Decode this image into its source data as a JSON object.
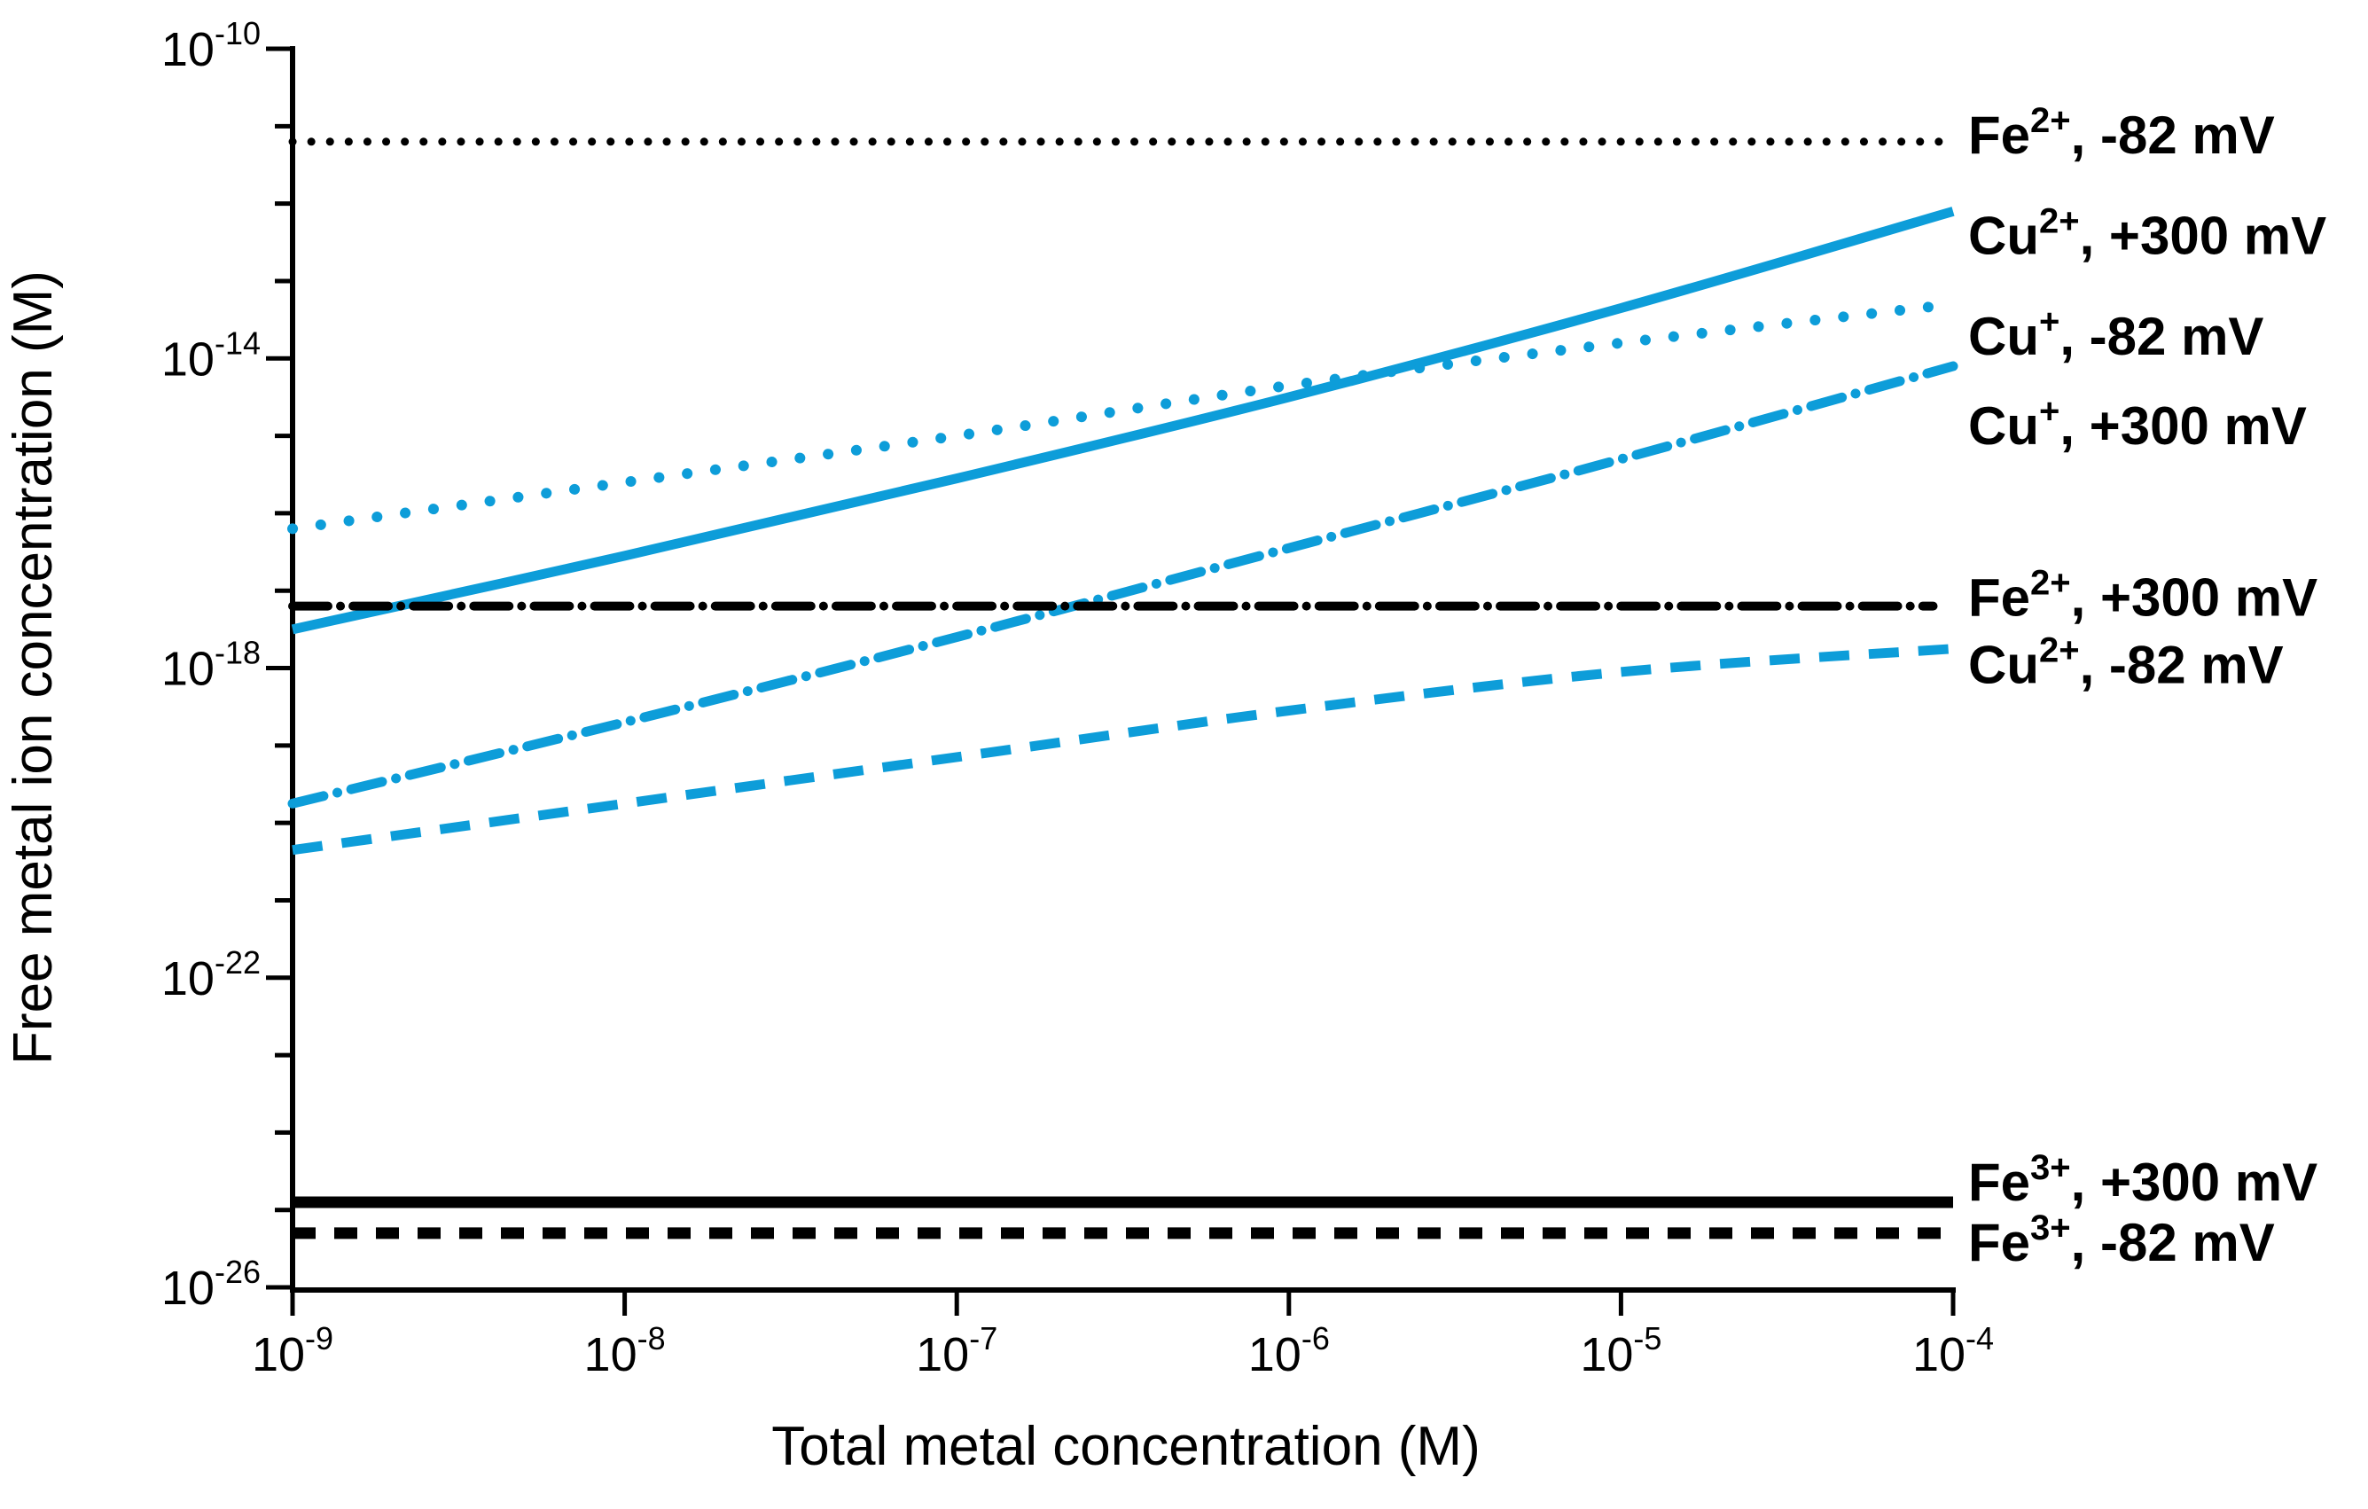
{
  "figure": {
    "background": "#ffffff",
    "accent_blue": "#0d9dd9",
    "line_black": "#000000"
  },
  "chart_data": {
    "type": "line",
    "title": "",
    "xlabel": "Total metal concentration (M)",
    "ylabel": "Free metal ion concentration (M)",
    "x_scale": "log",
    "y_scale": "log",
    "x_log_range": [
      -9,
      -4
    ],
    "y_log_range": [
      -10,
      -26
    ],
    "x_tick_exponents": [
      -9,
      -8,
      -7,
      -6,
      -5,
      -4
    ],
    "y_major_tick_exponents": [
      -10,
      -14,
      -18,
      -22,
      -26
    ],
    "y_minor_tick_step": 1,
    "tick_mantissa": "10",
    "grid": false,
    "legend_position": "right-of-lines",
    "series": [
      {
        "id": "fe2-minus82",
        "label": {
          "base": "Fe",
          "sup": "2+",
          "rest": ", -82 mV"
        },
        "color": "#000000",
        "style": "dotted",
        "x_log": [
          -9,
          -4
        ],
        "y_log": [
          -11.2,
          -11.2
        ],
        "label_dy": -8
      },
      {
        "id": "cu2-plus300",
        "label": {
          "base": "Cu",
          "sup": "2+",
          "rest": ", +300 mV"
        },
        "color": "#0d9dd9",
        "style": "solid",
        "x_log": [
          -9,
          -8,
          -7,
          -6,
          -5,
          -4
        ],
        "y_log": [
          -17.5,
          -16.55,
          -15.55,
          -14.5,
          -13.35,
          -12.1
        ],
        "label_dy": 27
      },
      {
        "id": "cu1-minus82",
        "label": {
          "base": "Cu",
          "sup": "+",
          "rest": ", -82 mV"
        },
        "color": "#0d9dd9",
        "style": "dotted",
        "x_log": [
          -9,
          -8,
          -7,
          -6,
          -5,
          -4
        ],
        "y_log": [
          -16.2,
          -15.6,
          -15.0,
          -14.35,
          -13.8,
          -13.3
        ],
        "label_dy": 36
      },
      {
        "id": "cu1-plus300",
        "label": {
          "base": "Cu",
          "sup": "+",
          "rest": ", +300 mV"
        },
        "color": "#0d9dd9",
        "style": "dashdot",
        "x_log": [
          -9,
          -8,
          -7,
          -6,
          -5,
          -4
        ],
        "y_log": [
          -19.75,
          -18.7,
          -17.6,
          -16.45,
          -15.3,
          -14.1
        ],
        "label_dy": 67
      },
      {
        "id": "fe2-plus300",
        "label": {
          "base": "Fe",
          "sup": "2+",
          "rest": ", +300 mV"
        },
        "color": "#000000",
        "style": "dashdot",
        "x_log": [
          -9,
          -4.06
        ],
        "y_log": [
          -17.2,
          -17.2
        ],
        "label_dy": -10
      },
      {
        "id": "cu2-minus82",
        "label": {
          "base": "Cu",
          "sup": "2+",
          "rest": ", -82 mV"
        },
        "color": "#0d9dd9",
        "style": "dashed",
        "x_log": [
          -9,
          -8,
          -7,
          -6,
          -5,
          -4
        ],
        "y_log": [
          -20.35,
          -19.75,
          -19.15,
          -18.55,
          -18.05,
          -17.75
        ],
        "label_dy": 18
      },
      {
        "id": "fe3-plus300",
        "label": {
          "base": "Fe",
          "sup": "3+",
          "rest": ", +300 mV"
        },
        "color": "#000000",
        "style": "solid",
        "x_log": [
          -9,
          -4
        ],
        "y_log": [
          -24.9,
          -24.9
        ],
        "label_dy": -23
      },
      {
        "id": "fe3-minus82",
        "label": {
          "base": "Fe",
          "sup": "3+",
          "rest": ", -82 mV"
        },
        "color": "#000000",
        "style": "dashed",
        "x_log": [
          -9,
          -4
        ],
        "y_log": [
          -25.3,
          -25.3
        ],
        "label_dy": 10
      }
    ]
  }
}
